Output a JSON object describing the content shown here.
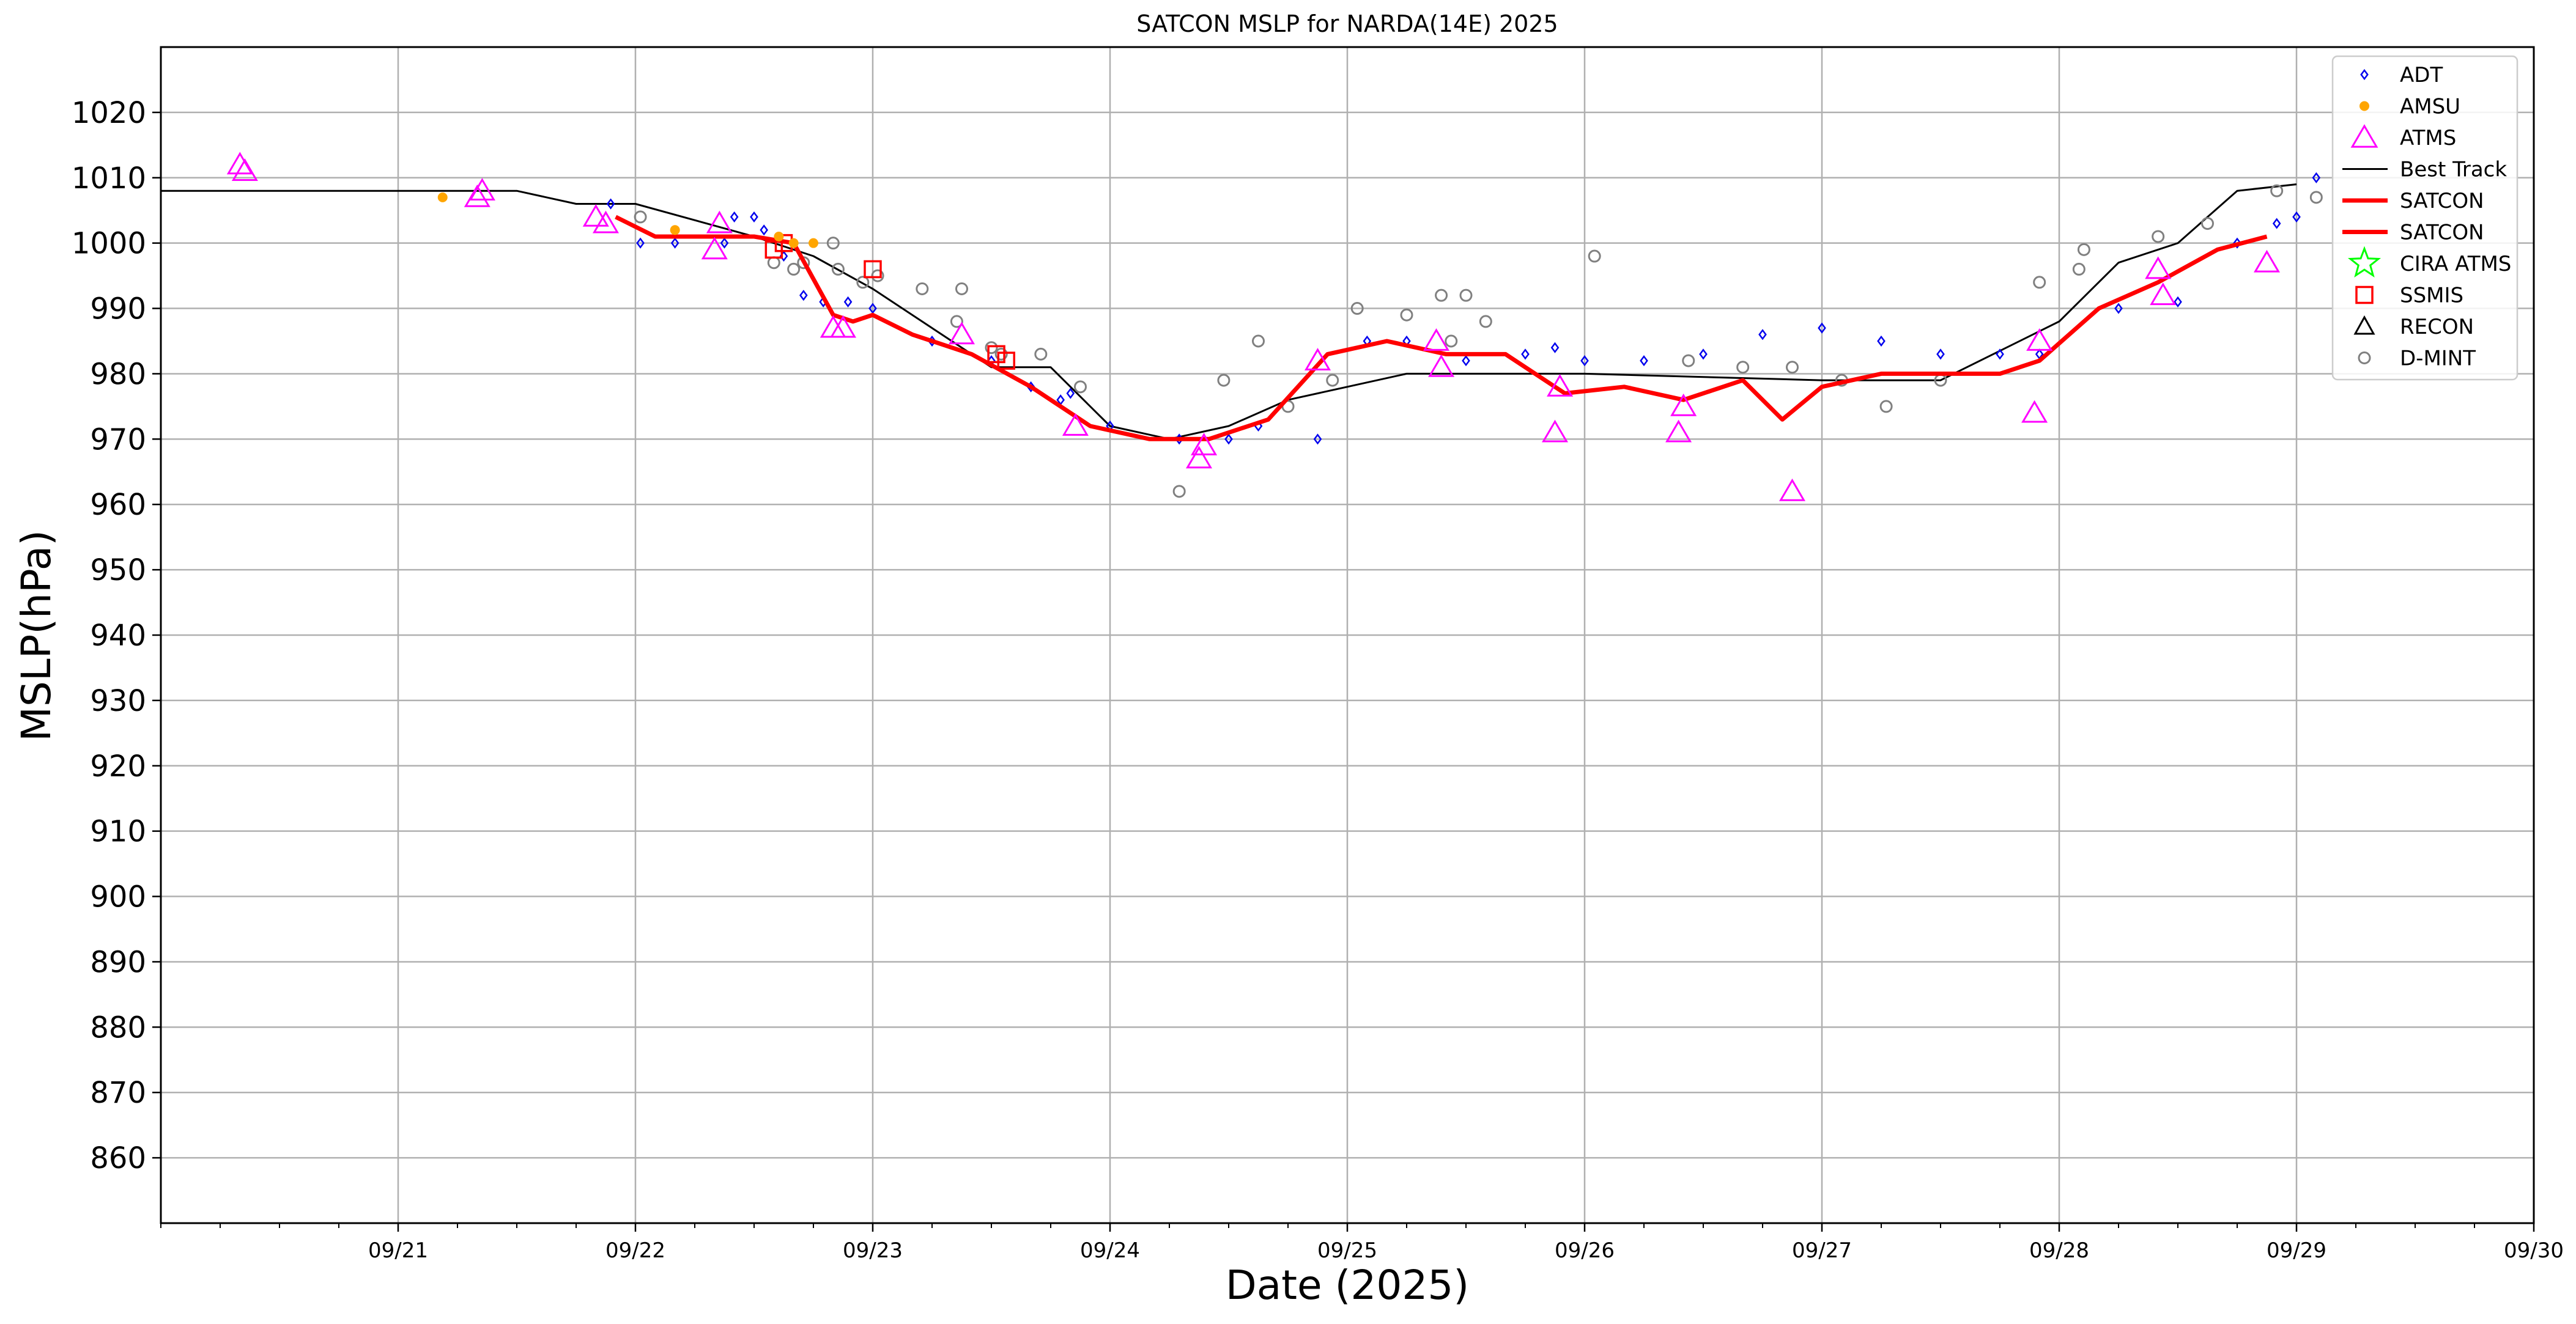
{
  "chart_data": {
    "type": "scatter",
    "title": "SATCON MSLP for NARDA(14E) 2025",
    "xlabel": "Date (2025)",
    "ylabel": "MSLP(hPa)",
    "xlim": [
      "2025-09-20 00:00",
      "2025-09-30 00:00"
    ],
    "ylim": [
      850,
      1030
    ],
    "x_ticks": [
      "09/21",
      "09/22",
      "09/23",
      "09/24",
      "09/25",
      "09/26",
      "09/27",
      "09/28",
      "09/29",
      "09/30"
    ],
    "y_ticks": [
      860,
      870,
      880,
      890,
      900,
      910,
      920,
      930,
      940,
      950,
      960,
      970,
      980,
      990,
      1000,
      1010,
      1020
    ],
    "grid": true,
    "legend_position": "top-right",
    "legend": [
      "ADT",
      "AMSU",
      "ATMS",
      "Best Track",
      "SATCON",
      "SATCON",
      "CIRA ATMS",
      "SSMIS",
      "RECON",
      "D-MINT"
    ],
    "colors": {
      "ADT": "#0000ee",
      "AMSU": "#ffa500",
      "ATMS": "#ff00ff",
      "Best Track": "#000000",
      "SATCON": "#ff0000",
      "CIRA ATMS": "#00ff00",
      "SSMIS": "#ff0000",
      "RECON": "#000000",
      "D-MINT": "#808080",
      "grid": "#b0b0b0"
    },
    "series": [
      {
        "name": "ADT",
        "marker": "diamond",
        "x": [
          "2025-09-21 21:30",
          "2025-09-22 00:30",
          "2025-09-22 04:00",
          "2025-09-22 09:00",
          "2025-09-22 10:00",
          "2025-09-22 12:00",
          "2025-09-22 13:00",
          "2025-09-22 15:00",
          "2025-09-22 17:00",
          "2025-09-22 19:00",
          "2025-09-22 21:30",
          "2025-09-23 00:00",
          "2025-09-23 06:00",
          "2025-09-23 12:00",
          "2025-09-23 16:00",
          "2025-09-23 19:00",
          "2025-09-23 20:00",
          "2025-09-24 00:00",
          "2025-09-24 07:00",
          "2025-09-24 12:00",
          "2025-09-24 15:00",
          "2025-09-24 21:00",
          "2025-09-25 02:00",
          "2025-09-25 06:00",
          "2025-09-25 12:00",
          "2025-09-25 18:00",
          "2025-09-25 21:00",
          "2025-09-26 00:00",
          "2025-09-26 06:00",
          "2025-09-26 12:00",
          "2025-09-26 18:00",
          "2025-09-27 00:00",
          "2025-09-27 06:00",
          "2025-09-27 12:00",
          "2025-09-27 18:00",
          "2025-09-27 22:00",
          "2025-09-28 06:00",
          "2025-09-28 12:00",
          "2025-09-28 18:00",
          "2025-09-28 22:00",
          "2025-09-29 00:00",
          "2025-09-29 02:00"
        ],
        "values": [
          1006,
          1000,
          1000,
          1000,
          1004,
          1004,
          1002,
          998,
          992,
          991,
          991,
          990,
          985,
          982,
          978,
          976,
          977,
          972,
          970,
          970,
          972,
          970,
          985,
          985,
          982,
          983,
          984,
          982,
          982,
          983,
          986,
          987,
          985,
          983,
          983,
          983,
          990,
          991,
          1000,
          1003,
          1004,
          1010
        ]
      },
      {
        "name": "AMSU",
        "marker": "dot",
        "x": [
          "2025-09-21 04:30",
          "2025-09-22 04:00",
          "2025-09-22 14:30",
          "2025-09-22 16:00",
          "2025-09-22 18:00"
        ],
        "values": [
          1007,
          1002,
          1001,
          1000,
          1000
        ]
      },
      {
        "name": "ATMS",
        "marker": "triangle",
        "x": [
          "2025-09-20 08:00",
          "2025-09-20 08:30",
          "2025-09-21 08:00",
          "2025-09-21 08:30",
          "2025-09-21 20:00",
          "2025-09-21 21:00",
          "2025-09-22 08:00",
          "2025-09-22 08:30",
          "2025-09-22 20:00",
          "2025-09-22 21:00",
          "2025-09-23 09:00",
          "2025-09-23 20:30",
          "2025-09-24 09:00",
          "2025-09-24 09:30",
          "2025-09-24 21:00",
          "2025-09-25 09:00",
          "2025-09-25 09:30",
          "2025-09-25 21:00",
          "2025-09-25 21:30",
          "2025-09-26 09:30",
          "2025-09-26 10:00",
          "2025-09-26 21:00",
          "2025-09-27 21:30",
          "2025-09-27 22:00",
          "2025-09-28 10:00",
          "2025-09-28 10:30",
          "2025-09-28 21:00"
        ],
        "values": [
          1012,
          1011,
          1007,
          1008,
          1004,
          1003,
          999,
          1003,
          987,
          987,
          986,
          972,
          967,
          969,
          982,
          985,
          981,
          971,
          978,
          971,
          975,
          962,
          974,
          985,
          996,
          992,
          997
        ]
      },
      {
        "name": "Best Track",
        "marker": "line",
        "x": [
          "2025-09-20 00:00",
          "2025-09-21 12:00",
          "2025-09-21 18:00",
          "2025-09-22 00:00",
          "2025-09-22 12:00",
          "2025-09-22 18:00",
          "2025-09-23 00:00",
          "2025-09-23 12:00",
          "2025-09-23 18:00",
          "2025-09-24 00:00",
          "2025-09-24 06:00",
          "2025-09-24 12:00",
          "2025-09-24 18:00",
          "2025-09-25 00:00",
          "2025-09-25 06:00",
          "2025-09-25 12:00",
          "2025-09-26 00:00",
          "2025-09-27 00:00",
          "2025-09-27 12:00",
          "2025-09-28 00:00",
          "2025-09-28 06:00",
          "2025-09-28 12:00",
          "2025-09-28 18:00",
          "2025-09-29 00:00"
        ],
        "values": [
          1008,
          1008,
          1006,
          1006,
          1001,
          998,
          993,
          981,
          981,
          972,
          970,
          972,
          976,
          978,
          980,
          980,
          980,
          979,
          979,
          988,
          997,
          1000,
          1008,
          1009
        ]
      },
      {
        "name": "SATCON",
        "marker": "line",
        "x": [
          "2025-09-21 22:00",
          "2025-09-22 02:00",
          "2025-09-22 06:00",
          "2025-09-22 12:00",
          "2025-09-22 16:00",
          "2025-09-22 20:00",
          "2025-09-22 22:00",
          "2025-09-23 00:00",
          "2025-09-23 04:00",
          "2025-09-23 10:00",
          "2025-09-23 16:00",
          "2025-09-23 22:00",
          "2025-09-24 04:00",
          "2025-09-24 10:00",
          "2025-09-24 16:00",
          "2025-09-24 22:00",
          "2025-09-25 04:00",
          "2025-09-25 10:00",
          "2025-09-25 16:00",
          "2025-09-25 22:00",
          "2025-09-26 04:00",
          "2025-09-26 10:00",
          "2025-09-26 16:00",
          "2025-09-26 20:00",
          "2025-09-27 00:00",
          "2025-09-27 06:00",
          "2025-09-27 12:00",
          "2025-09-27 18:00",
          "2025-09-27 22:00",
          "2025-09-28 04:00",
          "2025-09-28 10:00",
          "2025-09-28 16:00",
          "2025-09-28 21:00"
        ],
        "values": [
          1004,
          1001,
          1001,
          1001,
          1000,
          989,
          988,
          989,
          986,
          983,
          978,
          972,
          970,
          970,
          973,
          983,
          985,
          983,
          983,
          977,
          978,
          976,
          979,
          973,
          978,
          980,
          980,
          980,
          982,
          990,
          994,
          999,
          1001
        ]
      },
      {
        "name": "SSMIS",
        "marker": "square",
        "x": [
          "2025-09-22 14:00",
          "2025-09-22 15:00",
          "2025-09-23 00:00",
          "2025-09-23 12:30",
          "2025-09-23 13:30"
        ],
        "values": [
          999,
          1000,
          996,
          983,
          982
        ]
      },
      {
        "name": "D-MINT",
        "marker": "circle",
        "x": [
          "2025-09-22 00:30",
          "2025-09-22 14:00",
          "2025-09-22 16:00",
          "2025-09-22 17:00",
          "2025-09-22 20:00",
          "2025-09-22 20:30",
          "2025-09-22 23:00",
          "2025-09-23 00:30",
          "2025-09-23 05:00",
          "2025-09-23 08:30",
          "2025-09-23 09:00",
          "2025-09-23 12:00",
          "2025-09-23 13:00",
          "2025-09-23 17:00",
          "2025-09-23 21:00",
          "2025-09-24 07:00",
          "2025-09-24 11:30",
          "2025-09-24 15:00",
          "2025-09-24 18:00",
          "2025-09-24 22:30",
          "2025-09-25 01:00",
          "2025-09-25 06:00",
          "2025-09-25 09:30",
          "2025-09-25 10:30",
          "2025-09-25 12:00",
          "2025-09-25 14:00",
          "2025-09-26 01:00",
          "2025-09-26 10:30",
          "2025-09-26 16:00",
          "2025-09-26 21:00",
          "2025-09-27 02:00",
          "2025-09-27 06:30",
          "2025-09-27 12:00",
          "2025-09-27 22:00",
          "2025-09-28 02:00",
          "2025-09-28 02:30",
          "2025-09-28 10:00",
          "2025-09-28 15:00",
          "2025-09-28 22:00",
          "2025-09-29 02:00"
        ],
        "values": [
          1004,
          997,
          996,
          997,
          1000,
          996,
          994,
          995,
          993,
          988,
          993,
          984,
          983,
          983,
          978,
          962,
          979,
          985,
          975,
          979,
          990,
          989,
          992,
          985,
          992,
          988,
          998,
          982,
          981,
          981,
          979,
          975,
          979,
          994,
          996,
          999,
          1001,
          1003,
          1008,
          1007
        ]
      }
    ]
  }
}
